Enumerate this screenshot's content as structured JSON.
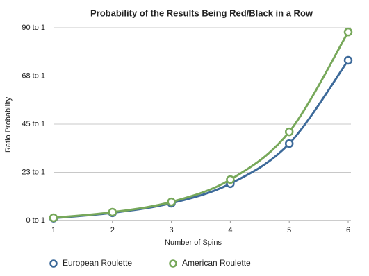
{
  "chart_data": {
    "type": "line",
    "title": "Probability of the Results Being Red/Black in a Row",
    "x_label": "Number of Spins",
    "y_label": "Ratio Probability",
    "x": [
      1,
      2,
      3,
      4,
      5,
      6
    ],
    "series": [
      {
        "name": "European Roulette",
        "color": "#3d6a9a",
        "values": [
          1.1,
          3.6,
          8.1,
          17.2,
          35.9,
          74.8
        ]
      },
      {
        "name": "American Roulette",
        "color": "#77a85a",
        "values": [
          1.3,
          3.9,
          8.7,
          19.1,
          41.4,
          88
        ]
      }
    ],
    "xlim": [
      1,
      6
    ],
    "xticks": [
      1,
      2,
      3,
      4,
      5,
      6
    ],
    "ylim": [
      0,
      90
    ],
    "yticks": [
      {
        "value": 0,
        "label": "0 to 1"
      },
      {
        "value": 22.5,
        "label": "23 to 1"
      },
      {
        "value": 45,
        "label": "45 to 1"
      },
      {
        "value": 67.5,
        "label": "68 to 1"
      },
      {
        "value": 90,
        "label": "90 to 1"
      }
    ],
    "grid": true,
    "legend": "bottom"
  }
}
